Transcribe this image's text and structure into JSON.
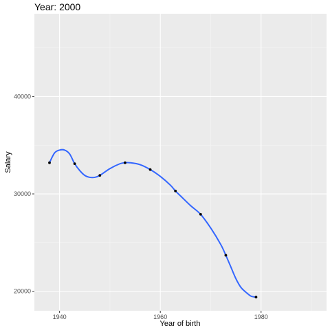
{
  "chart_data": {
    "type": "scatter",
    "title": "Year: 2000",
    "xlabel": "Year of birth",
    "ylabel": "Salary",
    "xlim": [
      1935,
      1993
    ],
    "ylim": [
      18000,
      48500
    ],
    "x_ticks": [
      1940,
      1960,
      1980
    ],
    "x_tick_labels": [
      "1940",
      "1960",
      "1980"
    ],
    "x_minor_ticks": [
      1950,
      1970,
      1990
    ],
    "y_ticks": [
      20000,
      30000,
      40000
    ],
    "y_tick_labels": [
      "20000",
      "30000",
      "40000"
    ],
    "y_minor_ticks": [
      25000,
      35000,
      45000
    ],
    "grid": true,
    "legend": "none",
    "series": [
      {
        "kind": "points",
        "x": [
          1938,
          1943,
          1948,
          1953,
          1958,
          1963,
          1968,
          1973,
          1979
        ],
        "y": [
          33200,
          33100,
          31900,
          33200,
          32500,
          30300,
          27900,
          23700,
          19400
        ]
      },
      {
        "kind": "smooth",
        "x": [
          1938,
          1939,
          1940,
          1941,
          1942,
          1943,
          1944,
          1945,
          1946,
          1947,
          1948,
          1950,
          1952,
          1953,
          1954,
          1956,
          1958,
          1960,
          1962,
          1963,
          1964,
          1966,
          1968,
          1970,
          1972,
          1973,
          1974,
          1975,
          1976,
          1977,
          1978,
          1979
        ],
        "y": [
          33200,
          34200,
          34500,
          34500,
          34100,
          33100,
          32400,
          31900,
          31700,
          31700,
          31900,
          32600,
          33100,
          33200,
          33200,
          33000,
          32500,
          31800,
          30900,
          30300,
          29800,
          28800,
          27900,
          26500,
          24800,
          23700,
          22500,
          21300,
          20400,
          19900,
          19500,
          19400
        ]
      }
    ],
    "colors": {
      "panel": "#ebebeb",
      "grid_major": "#ffffff",
      "line": "#3366ff",
      "point": "#000000",
      "tick": "#333333"
    }
  }
}
